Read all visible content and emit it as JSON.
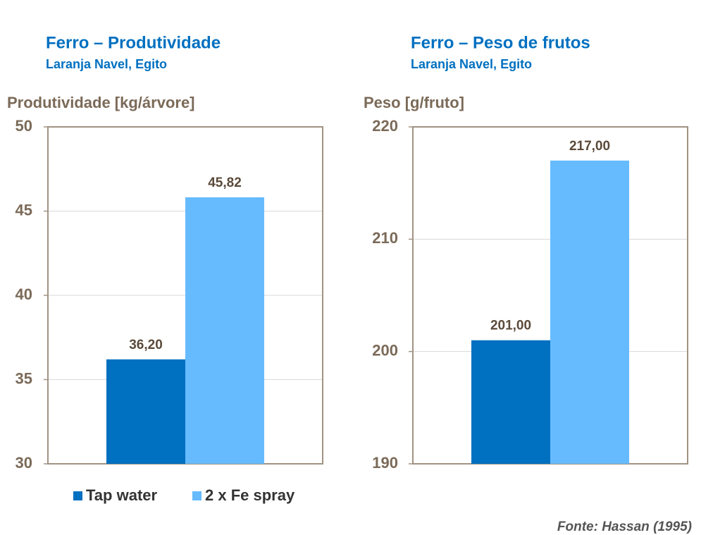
{
  "chart_data": [
    {
      "type": "bar",
      "title": "Ferro – Produtividade",
      "subtitle": "Laranja Navel, Egito",
      "y_label": "Produtividade [kg/árvore]",
      "categories": [
        null
      ],
      "series": [
        {
          "name": "Tap water",
          "color": "#0070c0",
          "values": [
            36.2
          ],
          "value_labels": [
            "36,20"
          ]
        },
        {
          "name": "2 x Fe spray",
          "color": "#66bbff",
          "values": [
            45.82
          ],
          "value_labels": [
            "45,82"
          ]
        }
      ],
      "ylim": [
        30,
        50
      ],
      "yticks": [
        30,
        35,
        40,
        45,
        50
      ],
      "grid": true
    },
    {
      "type": "bar",
      "title": "Ferro – Peso de frutos",
      "subtitle": "Laranja Navel, Egito",
      "y_label": "Peso [g/fruto]",
      "categories": [
        null
      ],
      "series": [
        {
          "color": "#0070c0",
          "values": [
            201
          ],
          "value_labels": [
            "201,00"
          ]
        },
        {
          "color": "#66bbff",
          "values": [
            217
          ],
          "value_labels": [
            "217,00"
          ]
        }
      ],
      "ylim": [
        190,
        220
      ],
      "yticks": [
        190,
        200,
        210,
        220
      ],
      "grid": true
    }
  ],
  "source": "Fonte: Hassan (1995)"
}
